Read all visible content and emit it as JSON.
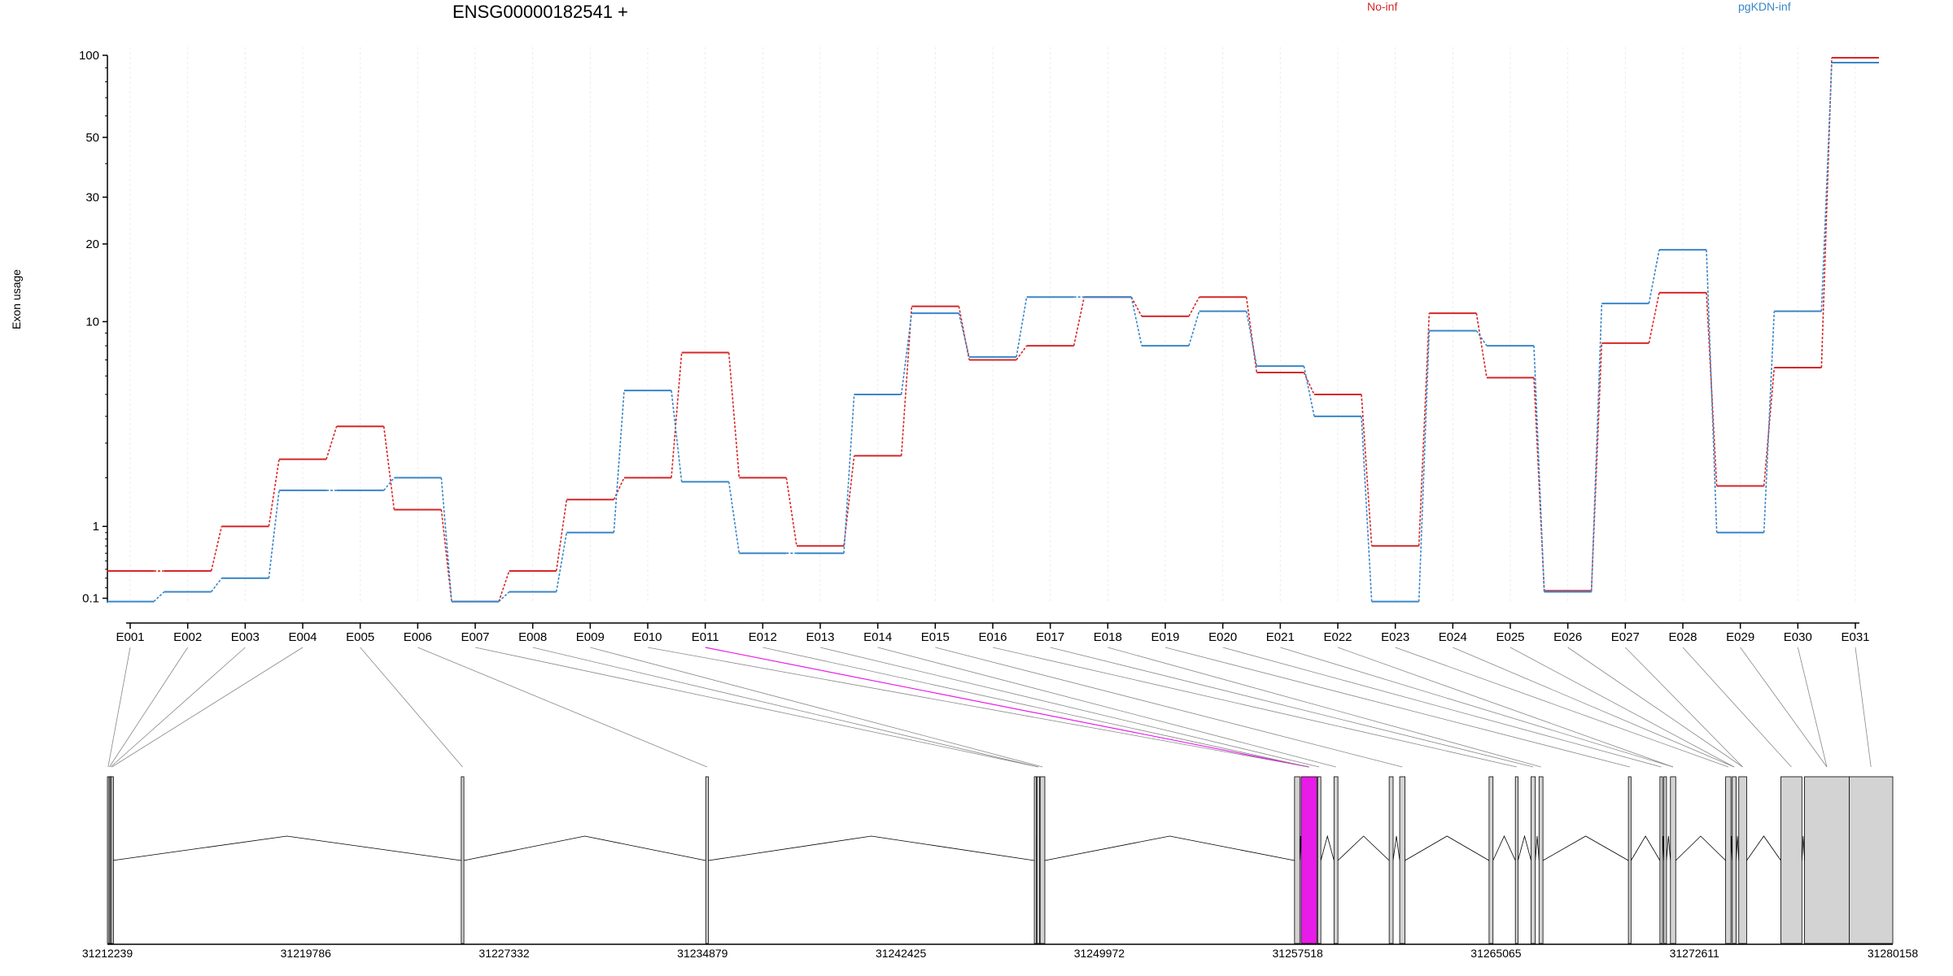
{
  "title": "ENSG00000182541 +",
  "ylabel": "Exon usage",
  "colors": {
    "no_inf": "#d62728",
    "pgkdn_inf": "#3a86c8",
    "highlight": "#e81ce8",
    "exon_fill": "#d3d3d3"
  },
  "legend": [
    {
      "label": "No-inf",
      "color": "#d62728"
    },
    {
      "label": "pgKDN-inf",
      "color": "#3a86c8"
    }
  ],
  "chart_data": {
    "type": "line",
    "title": "ENSG00000182541 +",
    "ylabel": "Exon usage",
    "yscale": "log(x+1)",
    "yticks": [
      0.1,
      1,
      10,
      20,
      30,
      50,
      100
    ],
    "ylim": [
      0.06,
      100
    ],
    "categories": [
      "E001",
      "E002",
      "E003",
      "E004",
      "E005",
      "E006",
      "E007",
      "E008",
      "E009",
      "E010",
      "E011",
      "E012",
      "E013",
      "E014",
      "E015",
      "E016",
      "E017",
      "E018",
      "E019",
      "E020",
      "E021",
      "E022",
      "E023",
      "E024",
      "E025",
      "E026",
      "E027",
      "E028",
      "E029",
      "E030",
      "E031"
    ],
    "series": [
      {
        "name": "No-inf",
        "values": [
          0.38,
          0.38,
          1.0,
          2.5,
          3.6,
          1.3,
          0.07,
          0.38,
          1.5,
          2.0,
          7.5,
          2.0,
          0.7,
          2.6,
          11.5,
          7.0,
          8.0,
          12.5,
          10.5,
          12.5,
          6.2,
          5.0,
          0.7,
          10.8,
          5.9,
          0.17,
          8.2,
          13.0,
          1.8,
          6.5,
          98
        ]
      },
      {
        "name": "pgKDN-inf",
        "values": [
          0.07,
          0.16,
          0.3,
          1.7,
          1.7,
          2.0,
          0.07,
          0.16,
          0.9,
          5.2,
          1.9,
          0.6,
          0.6,
          5.0,
          10.8,
          7.2,
          12.5,
          12.5,
          8.0,
          11.0,
          6.6,
          4.0,
          0.07,
          9.2,
          8.0,
          0.16,
          11.8,
          19.0,
          0.9,
          11.0,
          94
        ]
      }
    ],
    "highlight_exon": "E011",
    "genome_ticks": [
      "31212239",
      "31219786",
      "31227332",
      "31234879",
      "31242425",
      "31249972",
      "31257518",
      "31265065",
      "31272611",
      "31280158"
    ],
    "gene_model": {
      "start": 31212239,
      "end": 31280158,
      "exons": [
        [
          31212239,
          31212290
        ],
        [
          31212300,
          31212330
        ],
        [
          31212340,
          31212380
        ],
        [
          31212390,
          31212430
        ],
        [
          31225700,
          31225800
        ],
        [
          31235000,
          31235100
        ],
        [
          31247500,
          31247560
        ],
        [
          31247600,
          31247700
        ],
        [
          31247720,
          31247900
        ],
        [
          31257400,
          31257600
        ],
        [
          31257650,
          31258250
        ],
        [
          31258280,
          31258400
        ],
        [
          31258900,
          31259050
        ],
        [
          31261000,
          31261150
        ],
        [
          31261400,
          31261600
        ],
        [
          31264800,
          31264950
        ],
        [
          31265800,
          31265900
        ],
        [
          31266400,
          31266560
        ],
        [
          31266700,
          31266850
        ],
        [
          31270100,
          31270200
        ],
        [
          31271300,
          31271400
        ],
        [
          31271450,
          31271550
        ],
        [
          31271700,
          31271900
        ],
        [
          31273800,
          31274000
        ],
        [
          31274050,
          31274200
        ],
        [
          31274300,
          31274600
        ],
        [
          31275900,
          31276700
        ],
        [
          31276800,
          31278500
        ],
        [
          31278500,
          31280158
        ]
      ],
      "exon_links": [
        0,
        1,
        2,
        3,
        4,
        5,
        7,
        7,
        8,
        10,
        10,
        10,
        11,
        12,
        14,
        16,
        17,
        18,
        19,
        20,
        22,
        22,
        23,
        24,
        24,
        25,
        25,
        26,
        27,
        27,
        28
      ]
    }
  }
}
